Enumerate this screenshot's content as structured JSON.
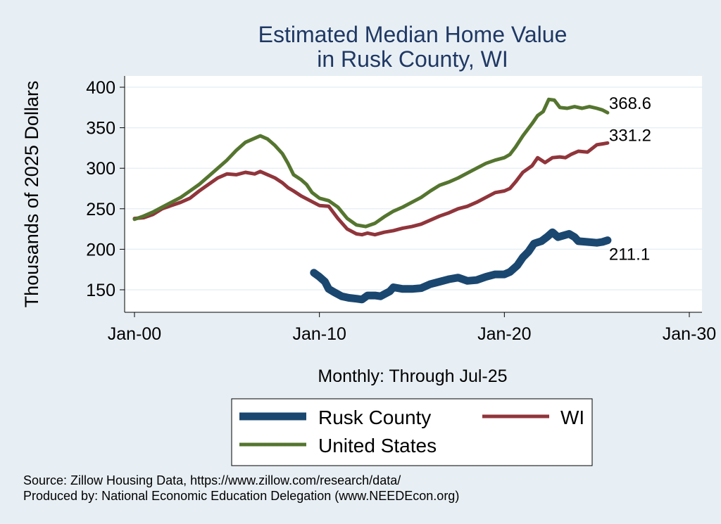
{
  "chart_data": {
    "type": "line",
    "title": [
      "Estimated Median Home Value",
      "in Rusk County, WI"
    ],
    "xlabel": "Monthly: Through Jul-25",
    "ylabel": "Thousands of 2025 Dollars",
    "x_ticks": [
      {
        "label": "Jan-00",
        "t": 2000.0
      },
      {
        "label": "Jan-10",
        "t": 2010.0
      },
      {
        "label": "Jan-20",
        "t": 2020.0
      },
      {
        "label": "Jan-30",
        "t": 2030.0
      }
    ],
    "y_ticks": [
      150,
      200,
      250,
      300,
      350,
      400
    ],
    "xlim": [
      2000,
      2030
    ],
    "ylim": [
      128,
      410
    ],
    "grid": true,
    "legend_position": "bottom",
    "series": [
      {
        "name": "Rusk County",
        "color": "#1a476f",
        "end_label": "211.1",
        "points": [
          [
            2009.7,
            171
          ],
          [
            2010.0,
            166
          ],
          [
            2010.3,
            160
          ],
          [
            2010.5,
            151
          ],
          [
            2010.8,
            147
          ],
          [
            2011.2,
            142
          ],
          [
            2011.6,
            140
          ],
          [
            2012.0,
            139
          ],
          [
            2012.3,
            138
          ],
          [
            2012.6,
            143
          ],
          [
            2013.0,
            143
          ],
          [
            2013.3,
            142
          ],
          [
            2013.8,
            148
          ],
          [
            2014.0,
            153
          ],
          [
            2014.5,
            151
          ],
          [
            2015.0,
            151
          ],
          [
            2015.5,
            152
          ],
          [
            2016.0,
            157
          ],
          [
            2016.5,
            160
          ],
          [
            2017.0,
            163
          ],
          [
            2017.5,
            165
          ],
          [
            2018.0,
            161
          ],
          [
            2018.5,
            162
          ],
          [
            2019.0,
            166
          ],
          [
            2019.5,
            169
          ],
          [
            2020.0,
            169
          ],
          [
            2020.3,
            172
          ],
          [
            2020.7,
            180
          ],
          [
            2021.0,
            190
          ],
          [
            2021.3,
            197
          ],
          [
            2021.6,
            207
          ],
          [
            2022.0,
            210
          ],
          [
            2022.3,
            215
          ],
          [
            2022.6,
            221
          ],
          [
            2022.9,
            215
          ],
          [
            2023.2,
            217
          ],
          [
            2023.5,
            219
          ],
          [
            2023.8,
            215
          ],
          [
            2024.0,
            210
          ],
          [
            2024.5,
            209
          ],
          [
            2025.0,
            208
          ],
          [
            2025.3,
            209
          ],
          [
            2025.58,
            211.1
          ]
        ]
      },
      {
        "name": "WI",
        "color": "#90353b",
        "end_label": "331.2",
        "points": [
          [
            2000.0,
            238
          ],
          [
            2000.5,
            239
          ],
          [
            2001.0,
            243
          ],
          [
            2001.5,
            250
          ],
          [
            2002.0,
            254
          ],
          [
            2002.5,
            258
          ],
          [
            2003.0,
            263
          ],
          [
            2003.5,
            272
          ],
          [
            2004.0,
            280
          ],
          [
            2004.5,
            288
          ],
          [
            2005.0,
            293
          ],
          [
            2005.5,
            292
          ],
          [
            2006.0,
            295
          ],
          [
            2006.5,
            293
          ],
          [
            2006.8,
            296
          ],
          [
            2007.2,
            292
          ],
          [
            2007.6,
            288
          ],
          [
            2008.0,
            282
          ],
          [
            2008.3,
            276
          ],
          [
            2008.6,
            272
          ],
          [
            2009.0,
            266
          ],
          [
            2009.5,
            260
          ],
          [
            2010.0,
            254
          ],
          [
            2010.5,
            253
          ],
          [
            2011.0,
            238
          ],
          [
            2011.5,
            225
          ],
          [
            2012.0,
            219
          ],
          [
            2012.3,
            218
          ],
          [
            2012.6,
            220
          ],
          [
            2013.0,
            218
          ],
          [
            2013.5,
            221
          ],
          [
            2014.0,
            223
          ],
          [
            2014.5,
            226
          ],
          [
            2015.0,
            228
          ],
          [
            2015.5,
            231
          ],
          [
            2016.0,
            236
          ],
          [
            2016.5,
            241
          ],
          [
            2017.0,
            245
          ],
          [
            2017.5,
            250
          ],
          [
            2018.0,
            253
          ],
          [
            2018.5,
            258
          ],
          [
            2019.0,
            264
          ],
          [
            2019.5,
            270
          ],
          [
            2020.0,
            272
          ],
          [
            2020.3,
            275
          ],
          [
            2020.6,
            283
          ],
          [
            2021.0,
            295
          ],
          [
            2021.5,
            303
          ],
          [
            2021.8,
            313
          ],
          [
            2022.2,
            307
          ],
          [
            2022.6,
            313
          ],
          [
            2023.0,
            314
          ],
          [
            2023.3,
            313
          ],
          [
            2023.6,
            317
          ],
          [
            2024.0,
            321
          ],
          [
            2024.5,
            320
          ],
          [
            2025.0,
            329
          ],
          [
            2025.3,
            330
          ],
          [
            2025.58,
            331.2
          ]
        ]
      },
      {
        "name": "United States",
        "color": "#55752f",
        "end_label": "368.6",
        "points": [
          [
            2000.0,
            237
          ],
          [
            2000.5,
            241
          ],
          [
            2001.0,
            246
          ],
          [
            2001.5,
            252
          ],
          [
            2002.0,
            258
          ],
          [
            2002.5,
            264
          ],
          [
            2003.0,
            272
          ],
          [
            2003.5,
            280
          ],
          [
            2004.0,
            290
          ],
          [
            2004.5,
            300
          ],
          [
            2005.0,
            310
          ],
          [
            2005.5,
            322
          ],
          [
            2006.0,
            332
          ],
          [
            2006.5,
            337
          ],
          [
            2006.8,
            340
          ],
          [
            2007.2,
            336
          ],
          [
            2007.6,
            328
          ],
          [
            2008.0,
            318
          ],
          [
            2008.3,
            306
          ],
          [
            2008.6,
            292
          ],
          [
            2009.0,
            286
          ],
          [
            2009.3,
            280
          ],
          [
            2009.6,
            270
          ],
          [
            2010.0,
            263
          ],
          [
            2010.5,
            260
          ],
          [
            2011.0,
            252
          ],
          [
            2011.5,
            238
          ],
          [
            2012.0,
            230
          ],
          [
            2012.5,
            228
          ],
          [
            2013.0,
            232
          ],
          [
            2013.5,
            240
          ],
          [
            2014.0,
            247
          ],
          [
            2014.5,
            252
          ],
          [
            2015.0,
            258
          ],
          [
            2015.5,
            264
          ],
          [
            2016.0,
            272
          ],
          [
            2016.5,
            279
          ],
          [
            2017.0,
            283
          ],
          [
            2017.5,
            288
          ],
          [
            2018.0,
            294
          ],
          [
            2018.5,
            300
          ],
          [
            2019.0,
            306
          ],
          [
            2019.5,
            310
          ],
          [
            2020.0,
            313
          ],
          [
            2020.3,
            317
          ],
          [
            2020.6,
            326
          ],
          [
            2021.0,
            340
          ],
          [
            2021.5,
            355
          ],
          [
            2021.8,
            365
          ],
          [
            2022.1,
            370
          ],
          [
            2022.4,
            385
          ],
          [
            2022.7,
            384
          ],
          [
            2023.0,
            375
          ],
          [
            2023.4,
            374
          ],
          [
            2023.8,
            376
          ],
          [
            2024.2,
            374
          ],
          [
            2024.6,
            376
          ],
          [
            2025.0,
            374
          ],
          [
            2025.3,
            372
          ],
          [
            2025.58,
            368.6
          ]
        ]
      }
    ]
  },
  "source_note": "Source: Zillow Housing Data, https://www.zillow.com/research/data/",
  "produced_note": "Produced by: National Economic Education Delegation (www.NEEDEcon.org)"
}
